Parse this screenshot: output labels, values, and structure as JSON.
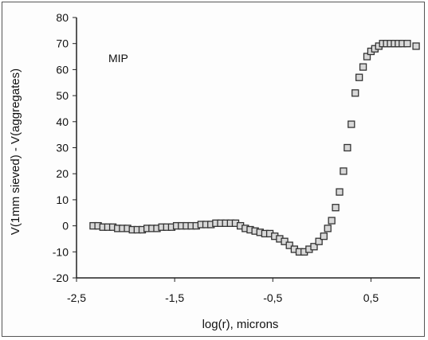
{
  "chart_data": {
    "type": "scatter",
    "title": "",
    "xlabel": "log(r), microns",
    "ylabel": "V(1mm sieved) - V(aggregates)",
    "xlim": [
      -2.5,
      1.0
    ],
    "ylim": [
      -20,
      80
    ],
    "x_ticks": [
      -2.5,
      -1.5,
      -0.5,
      0.5
    ],
    "x_tick_labels": [
      "-2,5",
      "-1,5",
      "-0,5",
      "0,5"
    ],
    "y_ticks": [
      -20,
      -10,
      0,
      10,
      20,
      30,
      40,
      50,
      60,
      70,
      80
    ],
    "y_tick_labels": [
      "-20",
      "-10",
      "0",
      "10",
      "20",
      "30",
      "40",
      "50",
      "60",
      "70",
      "80"
    ],
    "grid": false,
    "legend": "none",
    "annotation": "MIP",
    "marker": "open-square",
    "marker_color": "#333333",
    "series": [
      {
        "x": [
          -2.33,
          -2.28,
          -2.23,
          -2.18,
          -2.13,
          -2.08,
          -2.03,
          -1.98,
          -1.93,
          -1.88,
          -1.83,
          -1.78,
          -1.73,
          -1.68,
          -1.63,
          -1.58,
          -1.53,
          -1.48,
          -1.43,
          -1.38,
          -1.33,
          -1.28,
          -1.23,
          -1.18,
          -1.13,
          -1.08,
          -1.03,
          -0.98,
          -0.93,
          -0.88,
          -0.83,
          -0.78,
          -0.73,
          -0.68,
          -0.63,
          -0.58,
          -0.53,
          -0.48,
          -0.43,
          -0.38,
          -0.33,
          -0.28,
          -0.23,
          -0.18,
          -0.13,
          -0.08,
          -0.03,
          0.02,
          0.06,
          0.1,
          0.14,
          0.18,
          0.22,
          0.26,
          0.3,
          0.34,
          0.38,
          0.42,
          0.46,
          0.5,
          0.54,
          0.58,
          0.62,
          0.66,
          0.7,
          0.74,
          0.78,
          0.82,
          0.87,
          0.96
        ],
        "y": [
          0,
          0,
          -0.5,
          -0.5,
          -0.5,
          -1,
          -1,
          -1,
          -1.5,
          -1.5,
          -1.5,
          -1,
          -1,
          -1,
          -0.5,
          -0.5,
          -0.5,
          0,
          0,
          0,
          0,
          0,
          0.5,
          0.5,
          0.5,
          1,
          1,
          1,
          1,
          1,
          0,
          -1,
          -1.5,
          -2,
          -2.5,
          -3,
          -3,
          -4,
          -5,
          -6,
          -7.5,
          -9,
          -10,
          -10,
          -9,
          -8,
          -6,
          -4,
          -1,
          2,
          7,
          13,
          21,
          30,
          39,
          51,
          57,
          61,
          65,
          67,
          68,
          69,
          70,
          70,
          70,
          70,
          70,
          70,
          70,
          69
        ]
      }
    ]
  }
}
